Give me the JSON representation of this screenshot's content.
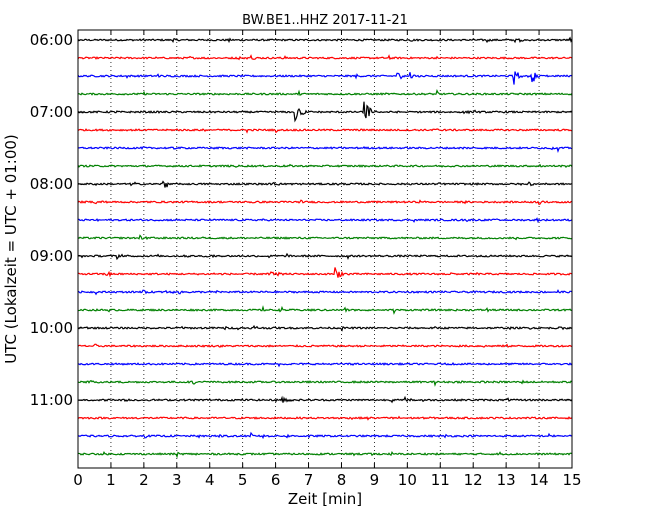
{
  "chart_data": {
    "type": "line",
    "title": "BW.BE1..HHZ 2017-11-21",
    "xlabel": "Zeit  [min]",
    "ylabel": "UTC (Lokalzeit = UTC + 01:00)",
    "xlim": [
      0,
      15
    ],
    "x_ticks": [
      0,
      1,
      2,
      3,
      4,
      5,
      6,
      7,
      8,
      9,
      10,
      11,
      12,
      13,
      14,
      15
    ],
    "y_tick_labels": [
      "06:00",
      "07:00",
      "08:00",
      "09:00",
      "10:00",
      "11:00"
    ],
    "trace_interval_minutes": 15,
    "traces": [
      "06:00",
      "06:15",
      "06:30",
      "06:45",
      "07:00",
      "07:15",
      "07:30",
      "07:45",
      "08:00",
      "08:15",
      "08:30",
      "08:45",
      "09:00",
      "09:15",
      "09:30",
      "09:45",
      "10:00",
      "10:15",
      "10:30",
      "10:45",
      "11:00",
      "11:15",
      "11:30",
      "11:45"
    ],
    "colors": [
      "#000000",
      "#ff0000",
      "#0000ff",
      "#008000"
    ],
    "grid": "vertical dotted",
    "events": [
      {
        "trace": "06:00",
        "t": 13.4,
        "amp": 0.3
      },
      {
        "trace": "06:15",
        "t": 4.9,
        "amp": 0.25
      },
      {
        "trace": "06:30",
        "t": 9.7,
        "amp": 0.55
      },
      {
        "trace": "06:30",
        "t": 10.1,
        "amp": 0.45
      },
      {
        "trace": "06:30",
        "t": 13.2,
        "amp": 1.6
      },
      {
        "trace": "06:30",
        "t": 13.8,
        "amp": 0.9
      },
      {
        "trace": "07:00",
        "t": 6.6,
        "amp": 1.8
      },
      {
        "trace": "07:00",
        "t": 8.7,
        "amp": 2.0
      },
      {
        "trace": "07:15",
        "t": 3.8,
        "amp": 0.25
      },
      {
        "trace": "07:15",
        "t": 10.8,
        "amp": 0.25
      },
      {
        "trace": "08:00",
        "t": 2.6,
        "amp": 0.9
      },
      {
        "trace": "08:00",
        "t": 5.9,
        "amp": 0.35
      },
      {
        "trace": "08:00",
        "t": 13.7,
        "amp": 0.3
      },
      {
        "trace": "08:15",
        "t": 14.0,
        "amp": 0.35
      },
      {
        "trace": "08:45",
        "t": 1.9,
        "amp": 0.35
      },
      {
        "trace": "09:00",
        "t": 1.2,
        "amp": 0.35
      },
      {
        "trace": "09:00",
        "t": 3.9,
        "amp": 0.3
      },
      {
        "trace": "09:15",
        "t": 5.8,
        "amp": 0.55
      },
      {
        "trace": "09:15",
        "t": 7.8,
        "amp": 1.3
      },
      {
        "trace": "09:30",
        "t": 1.9,
        "amp": 0.35
      },
      {
        "trace": "09:45",
        "t": 8.1,
        "amp": 0.45
      },
      {
        "trace": "10:00",
        "t": 14.6,
        "amp": 0.25
      },
      {
        "trace": "10:45",
        "t": 0.3,
        "amp": 0.3
      },
      {
        "trace": "10:45",
        "t": 3.5,
        "amp": 0.3
      },
      {
        "trace": "11:00",
        "t": 1.4,
        "amp": 0.3
      },
      {
        "trace": "11:00",
        "t": 6.2,
        "amp": 0.8
      },
      {
        "trace": "11:15",
        "t": 8.8,
        "amp": 0.25
      },
      {
        "trace": "11:30",
        "t": 4.3,
        "amp": 0.3
      },
      {
        "trace": "11:30",
        "t": 14.3,
        "amp": 0.3
      }
    ]
  }
}
